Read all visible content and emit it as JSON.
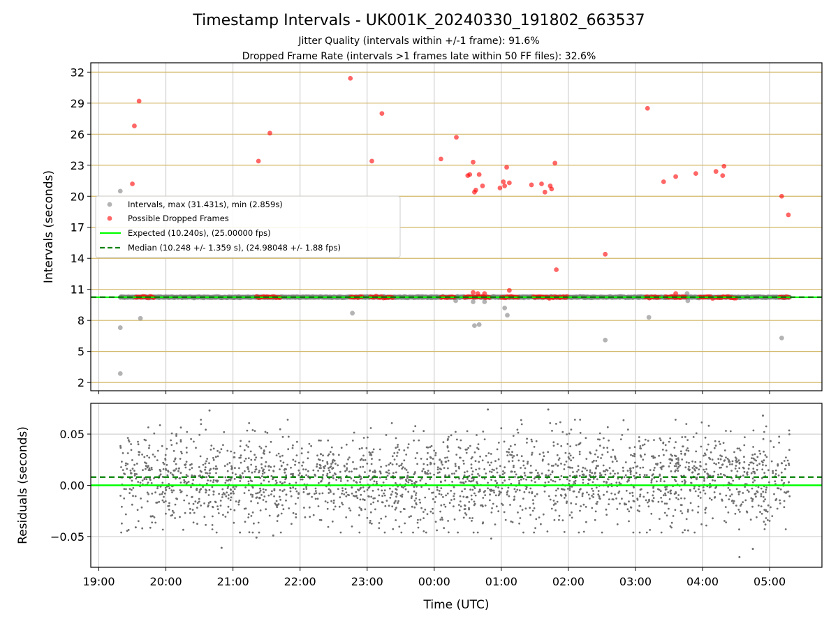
{
  "chart_data": [
    {
      "type": "scatter",
      "title": "Timestamp Intervals - UK001K_20240330_191802_663537",
      "subtitle_lines": [
        "Jitter Quality (intervals within +/-1 frame): 91.6%",
        "Dropped Frame Rate (intervals >1 frames late within 50 FF files): 32.6%"
      ],
      "xlabel": "",
      "ylabel": "Intervals (seconds)",
      "x_unit": "hours since 19:00 UTC",
      "xlim": [
        -0.12,
        10.78
      ],
      "ylim": [
        1.2,
        32.9
      ],
      "yticks": [
        2,
        5,
        8,
        11,
        14,
        17,
        20,
        23,
        26,
        29,
        32
      ],
      "xticks": [
        0,
        1,
        2,
        3,
        4,
        5,
        6,
        7,
        8,
        9,
        10
      ],
      "grid": "both",
      "legend_position": "center-left",
      "legend": [
        "Intervals, max (31.431s), min (2.859s)",
        "Possible Dropped Frames",
        "Expected (10.240s), (25.00000 fps)",
        "Median (10.248 +/- 1.359 s), (24.98048 +/- 1.88 fps)"
      ],
      "expected_line": 10.24,
      "median_line": 10.248,
      "baseline_x_range": [
        0.32,
        10.3
      ],
      "gray_outliers": [
        {
          "x": 0.32,
          "y": 20.5
        },
        {
          "x": 0.32,
          "y": 7.3
        },
        {
          "x": 0.32,
          "y": 2.86
        },
        {
          "x": 0.62,
          "y": 8.2
        },
        {
          "x": 3.78,
          "y": 8.7
        },
        {
          "x": 5.32,
          "y": 9.9
        },
        {
          "x": 5.58,
          "y": 9.8
        },
        {
          "x": 5.6,
          "y": 7.5
        },
        {
          "x": 5.67,
          "y": 7.6
        },
        {
          "x": 5.75,
          "y": 9.8
        },
        {
          "x": 6.05,
          "y": 9.2
        },
        {
          "x": 6.09,
          "y": 8.5
        },
        {
          "x": 7.55,
          "y": 6.1
        },
        {
          "x": 8.2,
          "y": 8.3
        },
        {
          "x": 8.77,
          "y": 10.6
        },
        {
          "x": 8.78,
          "y": 9.9
        },
        {
          "x": 10.18,
          "y": 6.3
        }
      ],
      "dropped_outliers": [
        {
          "x": 0.5,
          "y": 21.2
        },
        {
          "x": 0.53,
          "y": 26.8
        },
        {
          "x": 0.6,
          "y": 29.2
        },
        {
          "x": 2.38,
          "y": 23.4
        },
        {
          "x": 2.55,
          "y": 26.1
        },
        {
          "x": 3.75,
          "y": 31.4
        },
        {
          "x": 4.07,
          "y": 23.4
        },
        {
          "x": 4.22,
          "y": 28.0
        },
        {
          "x": 5.1,
          "y": 23.6
        },
        {
          "x": 5.33,
          "y": 25.7
        },
        {
          "x": 5.5,
          "y": 22.0
        },
        {
          "x": 5.53,
          "y": 22.1
        },
        {
          "x": 5.58,
          "y": 23.3
        },
        {
          "x": 5.6,
          "y": 20.4
        },
        {
          "x": 5.62,
          "y": 20.6
        },
        {
          "x": 5.67,
          "y": 22.1
        },
        {
          "x": 5.72,
          "y": 21.0
        },
        {
          "x": 5.98,
          "y": 20.8
        },
        {
          "x": 6.03,
          "y": 21.4
        },
        {
          "x": 6.05,
          "y": 21.0
        },
        {
          "x": 6.08,
          "y": 22.8
        },
        {
          "x": 6.12,
          "y": 21.3
        },
        {
          "x": 6.45,
          "y": 21.1
        },
        {
          "x": 6.6,
          "y": 21.2
        },
        {
          "x": 6.65,
          "y": 20.4
        },
        {
          "x": 6.73,
          "y": 21.0
        },
        {
          "x": 6.75,
          "y": 20.7
        },
        {
          "x": 6.8,
          "y": 23.2
        },
        {
          "x": 6.82,
          "y": 12.9
        },
        {
          "x": 7.55,
          "y": 14.4
        },
        {
          "x": 8.18,
          "y": 28.5
        },
        {
          "x": 8.42,
          "y": 21.4
        },
        {
          "x": 8.6,
          "y": 21.9
        },
        {
          "x": 8.9,
          "y": 22.2
        },
        {
          "x": 9.2,
          "y": 22.4
        },
        {
          "x": 9.3,
          "y": 22.0
        },
        {
          "x": 9.32,
          "y": 22.9
        },
        {
          "x": 10.18,
          "y": 20.0
        },
        {
          "x": 10.28,
          "y": 18.2
        },
        {
          "x": 5.58,
          "y": 10.7
        },
        {
          "x": 5.65,
          "y": 10.6
        },
        {
          "x": 5.75,
          "y": 10.6
        },
        {
          "x": 6.12,
          "y": 10.9
        },
        {
          "x": 8.6,
          "y": 10.6
        }
      ],
      "dropped_clusters": [
        [
          0.55,
          0.82
        ],
        [
          2.35,
          2.7
        ],
        [
          3.75,
          3.92
        ],
        [
          4.05,
          4.38
        ],
        [
          5.1,
          5.3
        ],
        [
          5.45,
          5.82
        ],
        [
          6.0,
          6.25
        ],
        [
          6.48,
          6.98
        ],
        [
          8.15,
          8.35
        ],
        [
          8.45,
          8.75
        ],
        [
          8.95,
          9.15
        ],
        [
          9.2,
          9.5
        ],
        [
          10.15,
          10.28
        ]
      ]
    },
    {
      "type": "scatter",
      "xlabel": "Time (UTC)",
      "ylabel": "Residuals (seconds)",
      "xlim": [
        -0.12,
        10.78
      ],
      "ylim": [
        -0.08,
        0.08
      ],
      "yticks": [
        0.05,
        0.0,
        -0.05
      ],
      "ytick_labels": [
        "0.05",
        "0.00",
        "−0.05"
      ],
      "xtick_labels": [
        "19:00",
        "20:00",
        "21:00",
        "22:00",
        "23:00",
        "00:00",
        "01:00",
        "02:00",
        "03:00",
        "04:00",
        "05:00"
      ],
      "grid": "both",
      "expected_line": 0.0,
      "median_line": 0.008,
      "residual_x_range": [
        0.32,
        10.3
      ],
      "residual_point_count": 2400,
      "residual_sd": 0.022,
      "residual_mean": 0.005,
      "notable_residuals": [
        {
          "x": 0.55,
          "y": -0.041
        },
        {
          "x": 1.65,
          "y": 0.073
        },
        {
          "x": 1.83,
          "y": -0.061
        },
        {
          "x": 2.35,
          "y": -0.051
        },
        {
          "x": 2.6,
          "y": -0.049
        },
        {
          "x": 5.8,
          "y": 0.074
        },
        {
          "x": 5.85,
          "y": -0.052
        },
        {
          "x": 6.7,
          "y": 0.074
        },
        {
          "x": 9.55,
          "y": -0.07
        },
        {
          "x": 9.75,
          "y": -0.062
        },
        {
          "x": 9.9,
          "y": 0.068
        }
      ]
    }
  ],
  "colors": {
    "interval_points": "#808080",
    "dropped_points": "#ff0000",
    "expected_line": "#00ff00",
    "median_line": "#008000",
    "h_grid_top": "#d2b766",
    "grid": "#c8c8c8",
    "residual_points": "#6e6e6e"
  }
}
